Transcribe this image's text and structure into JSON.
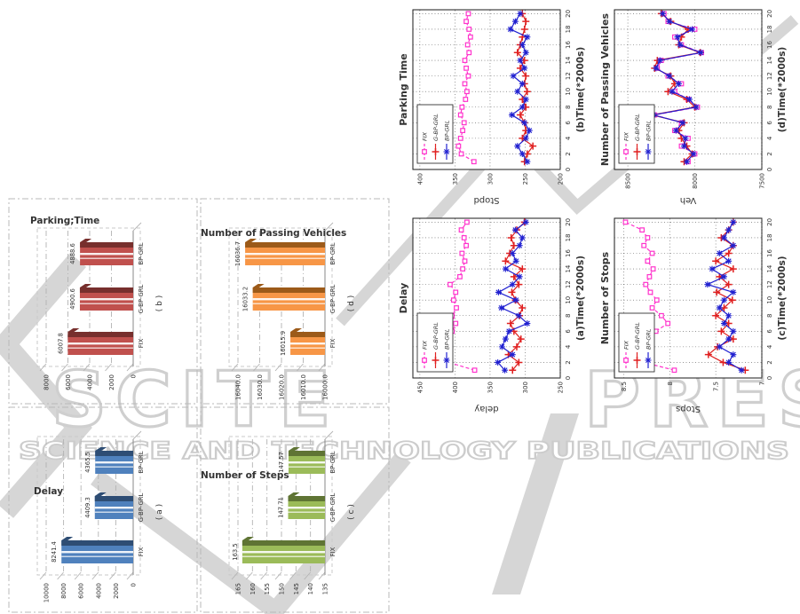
{
  "watermark": {
    "brand_left": "SCITE",
    "brand_right": "PRESS",
    "tagline": "SCIENCE AND TECHNOLOGY PUBLICATIONS",
    "color": "#d2d2d2"
  },
  "chart_data": [
    {
      "type": "bar",
      "id": "bar-delay",
      "title": "Delay",
      "caption": "( a )",
      "categories": [
        "FIX",
        "G-BP-GRL",
        "BP-GRL"
      ],
      "values": [
        8241.4,
        4409.3,
        4365.5
      ],
      "value_labels": [
        "8241.4",
        "4409.3",
        "4365.5"
      ],
      "ticks": [
        0,
        2000,
        4000,
        6000,
        8000,
        10000
      ],
      "tick_labels": [
        "0",
        "2000",
        "4000",
        "6000",
        "8000",
        "10000"
      ],
      "ymin": 0,
      "ymax": 10000,
      "bar_color": "#4F81BD",
      "bar_dark": "#2E4D74"
    },
    {
      "type": "bar",
      "id": "bar-parking",
      "title": "Parking;Time",
      "caption": "( b )",
      "categories": [
        "FIX",
        "G-BP-GRL",
        "BP-GRL"
      ],
      "values": [
        6007.8,
        4900.6,
        4888.6
      ],
      "value_labels": [
        "6007.8",
        "4900.6",
        "4888.6"
      ],
      "ticks": [
        0,
        2000,
        4000,
        6000,
        8000
      ],
      "tick_labels": [
        "0",
        "2000",
        "4000",
        "6000",
        "8000"
      ],
      "ymin": 0,
      "ymax": 8000,
      "bar_color": "#C0504D",
      "bar_dark": "#772F2D"
    },
    {
      "type": "bar",
      "id": "bar-steps",
      "title": "Number of Steps",
      "caption": "( c )",
      "categories": [
        "FIX",
        "G-BP-GRL",
        "BP-GRL"
      ],
      "values": [
        163.5,
        147.71,
        147.57
      ],
      "value_labels": [
        "163.5",
        "147.71",
        "147.57"
      ],
      "ticks": [
        135,
        140,
        145,
        150,
        155,
        160,
        165
      ],
      "tick_labels": [
        "135",
        "140",
        "145",
        "150",
        "155",
        "160",
        "165"
      ],
      "ymin": 135,
      "ymax": 165,
      "bar_color": "#9BBB59",
      "bar_dark": "#5F7434"
    },
    {
      "type": "bar",
      "id": "bar-veh",
      "title": "Number of Passing Vehicles",
      "caption": "( d )",
      "categories": [
        "FIX",
        "G-BP-GRL",
        "BP-GRL"
      ],
      "values": [
        16015.9,
        16033.2,
        16036.7
      ],
      "value_labels": [
        "16015.9",
        "16033.2",
        "16036.7"
      ],
      "ticks": [
        16000,
        16010,
        16020,
        16030,
        16040
      ],
      "tick_labels": [
        "16000.0",
        "16010.0",
        "16020.0",
        "16030.0",
        "16040.0"
      ],
      "ymin": 16000,
      "ymax": 16040,
      "bar_color": "#F79646",
      "bar_dark": "#9C5A19"
    },
    {
      "type": "line",
      "id": "line-delay",
      "title": "Delay",
      "ylabel": "delay",
      "xlabel": "(a)Time(*2000s)",
      "ylim": [
        250,
        460
      ],
      "yticks": [
        250,
        300,
        350,
        400,
        450
      ],
      "ytick_labels": [
        "250",
        "300",
        "350",
        "400",
        "450"
      ],
      "xlim": [
        0,
        20.5
      ],
      "xticks": [
        0,
        2,
        4,
        6,
        8,
        10,
        12,
        14,
        16,
        18,
        20
      ],
      "series": [
        {
          "name": "FIX",
          "color": "#ff33cc",
          "dash": true,
          "marker": "square",
          "values": [
            372,
            409,
            414,
            408,
            411,
            404,
            399,
            404,
            398,
            402,
            399,
            407,
            393,
            389,
            386,
            390,
            384,
            387,
            391,
            383
          ]
        },
        {
          "name": "G-BP-GRL",
          "color": "#e02020",
          "dash": false,
          "marker": "plus",
          "values": [
            318,
            309,
            324,
            312,
            306,
            316,
            321,
            308,
            304,
            314,
            319,
            309,
            316,
            304,
            328,
            322,
            316,
            320,
            312,
            301
          ]
        },
        {
          "name": "BP-GRL",
          "color": "#2020d0",
          "dash": false,
          "marker": "star",
          "values": [
            329,
            339,
            318,
            333,
            328,
            323,
            297,
            309,
            334,
            313,
            338,
            318,
            308,
            328,
            313,
            318,
            308,
            304,
            314,
            299
          ]
        }
      ]
    },
    {
      "type": "line",
      "id": "line-parking",
      "title": "Parking Time",
      "ylabel": "Stopd",
      "xlabel": "(b)Time(*2000s)",
      "ylim": [
        200,
        410
      ],
      "yticks": [
        200,
        250,
        300,
        350,
        400
      ],
      "ytick_labels": [
        "200",
        "250",
        "300",
        "350",
        "400"
      ],
      "xlim": [
        0,
        20.5
      ],
      "xticks": [
        0,
        2,
        4,
        6,
        8,
        10,
        12,
        14,
        16,
        18,
        20
      ],
      "series": [
        {
          "name": "FIX",
          "color": "#ff33cc",
          "dash": true,
          "marker": "square",
          "values": [
            323,
            341,
            345,
            342,
            339,
            337,
            342,
            340,
            335,
            333,
            336,
            331,
            334,
            336,
            330,
            332,
            328,
            330,
            334,
            331
          ]
        },
        {
          "name": "G-BP-GRL",
          "color": "#e02020",
          "dash": false,
          "marker": "plus",
          "values": [
            251,
            247,
            239,
            254,
            249,
            251,
            257,
            249,
            254,
            247,
            251,
            249,
            257,
            251,
            261,
            257,
            254,
            251,
            249,
            254
          ]
        },
        {
          "name": "BP-GRL",
          "color": "#2020d0",
          "dash": false,
          "marker": "star",
          "values": [
            247,
            254,
            261,
            249,
            244,
            251,
            269,
            254,
            249,
            261,
            254,
            267,
            251,
            257,
            249,
            254,
            247,
            271,
            264,
            257
          ]
        }
      ]
    },
    {
      "type": "line",
      "id": "line-stops",
      "title": "Number of Stops",
      "ylabel": "Stops",
      "xlabel": "(c)Time(*2000s)",
      "ylim": [
        7,
        8.6
      ],
      "yticks": [
        7,
        7.5,
        8,
        8.5
      ],
      "ytick_labels": [
        "7",
        "7.5",
        "8",
        "8.5"
      ],
      "xlim": [
        0,
        20.5
      ],
      "xticks": [
        0,
        2,
        4,
        6,
        8,
        10,
        12,
        14,
        16,
        18,
        20
      ],
      "series": [
        {
          "name": "FIX",
          "color": "#ff33cc",
          "dash": true,
          "marker": "square",
          "values": [
            7.95,
            8.28,
            8.22,
            8.27,
            8.21,
            8.15,
            8.02,
            8.09,
            8.19,
            8.14,
            8.21,
            8.26,
            8.22,
            8.18,
            8.24,
            8.19,
            8.28,
            8.24,
            8.3,
            8.48
          ]
        },
        {
          "name": "G-BP-GRL",
          "color": "#e02020",
          "dash": false,
          "marker": "plus",
          "values": [
            7.18,
            7.42,
            7.58,
            7.48,
            7.31,
            7.44,
            7.36,
            7.5,
            7.41,
            7.32,
            7.49,
            7.36,
            7.46,
            7.31,
            7.5,
            7.36,
            7.31,
            7.44,
            7.36,
            7.31
          ]
        },
        {
          "name": "BP-GRL",
          "color": "#2020d0",
          "dash": false,
          "marker": "star",
          "values": [
            7.22,
            7.36,
            7.31,
            7.46,
            7.36,
            7.31,
            7.41,
            7.36,
            7.46,
            7.41,
            7.31,
            7.59,
            7.41,
            7.54,
            7.36,
            7.46,
            7.31,
            7.41,
            7.36,
            7.31
          ]
        }
      ]
    },
    {
      "type": "line",
      "id": "line-veh",
      "title": "Number of Passing Vehicles",
      "ylabel": "Veh",
      "xlabel": "(d)Time(*2000s)",
      "ylim": [
        7500,
        8600
      ],
      "yticks": [
        7500,
        8000,
        8500
      ],
      "ytick_labels": [
        "7500",
        "8000",
        "8500"
      ],
      "xlim": [
        0,
        20.5
      ],
      "xticks": [
        0,
        2,
        4,
        6,
        8,
        10,
        12,
        14,
        16,
        18,
        20
      ],
      "series": [
        {
          "name": "FIX",
          "color": "#ff33cc",
          "dash": true,
          "marker": "square",
          "values": [
            8050,
            8000,
            8100,
            8050,
            8150,
            8100,
            8300,
            7980,
            8050,
            8150,
            8100,
            8200,
            8280,
            8250,
            7950,
            8100,
            8150,
            8000,
            8200,
            8230
          ]
        },
        {
          "name": "G-BP-GRL",
          "color": "#e02020",
          "dash": false,
          "marker": "plus",
          "values": [
            8080,
            8020,
            8060,
            8100,
            8120,
            8080,
            8320,
            8000,
            8060,
            8200,
            8150,
            8180,
            8300,
            8280,
            7960,
            8120,
            8100,
            8050,
            8180,
            8250
          ]
        },
        {
          "name": "BP-GRL",
          "color": "#2020d0",
          "dash": false,
          "marker": "star",
          "values": [
            8060,
            8010,
            8080,
            8070,
            8140,
            8090,
            8310,
            7990,
            8040,
            8170,
            8120,
            8190,
            8290,
            8260,
            7955,
            8110,
            8130,
            8020,
            8190,
            8240
          ]
        }
      ]
    }
  ]
}
